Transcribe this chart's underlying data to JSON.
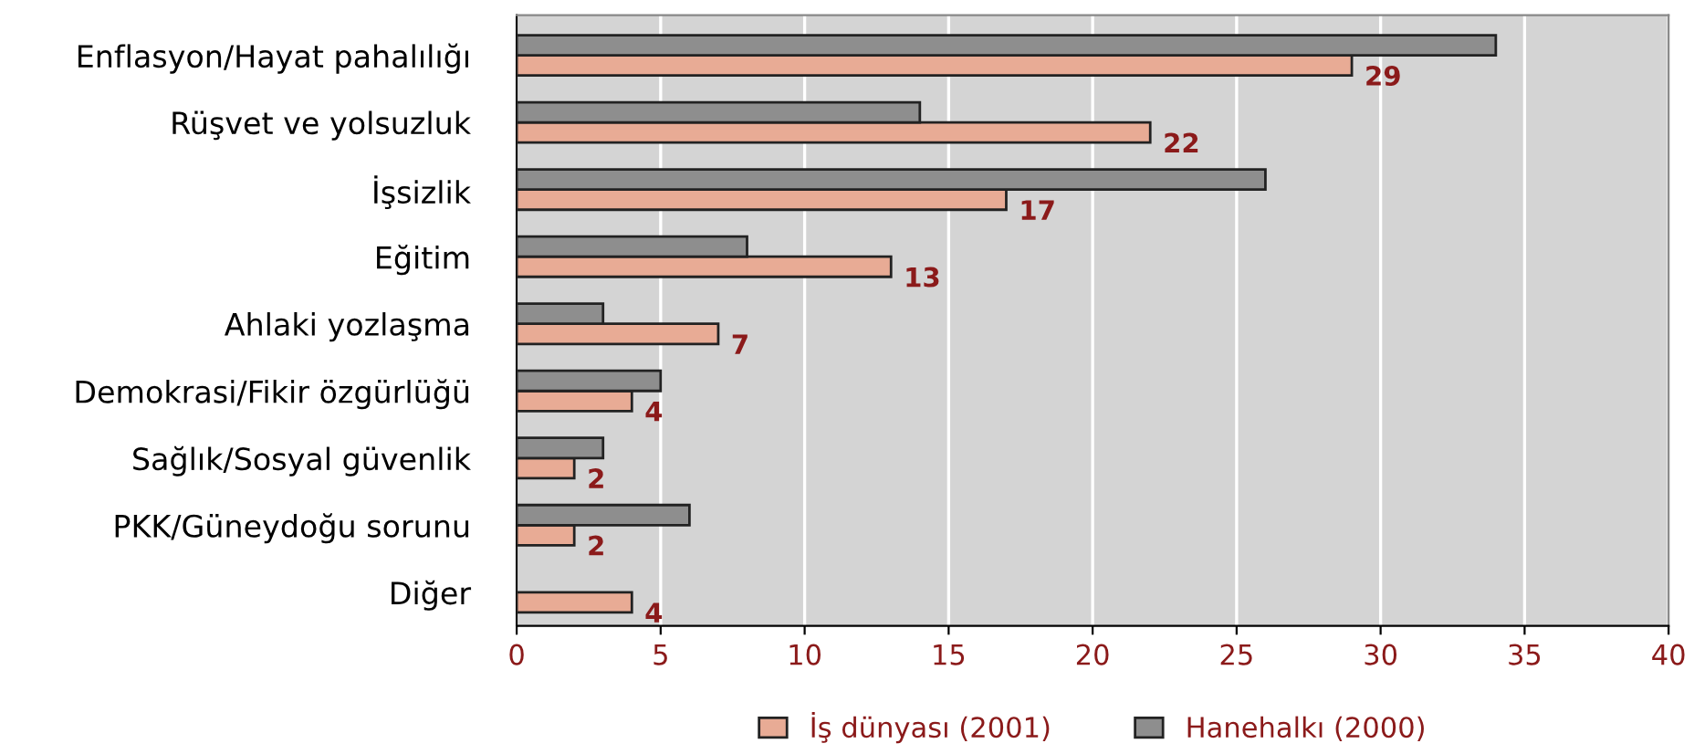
{
  "chart_data": {
    "type": "bar",
    "orientation": "horizontal",
    "categories": [
      "Enflasyon/Hayat pahalılığı",
      "Rüşvet ve yolsuzluk",
      "İşsizlik",
      "Eğitim",
      "Ahlaki yozlaşma",
      "Demokrasi/Fikir özgürlüğü",
      "Sağlık/Sosyal güvenlik",
      "PKK/Güneydoğu sorunu",
      "Diğer"
    ],
    "series": [
      {
        "name": "İş dünyası (2001)",
        "color": "#e8ab95",
        "values": [
          29,
          22,
          17,
          13,
          7,
          4,
          2,
          2,
          4
        ],
        "value_labels": [
          "29",
          "22",
          "17",
          "13",
          "7",
          "4",
          "2",
          "2",
          "4"
        ]
      },
      {
        "name": "Hanehalkı (2000)",
        "color": "#8e8e8e",
        "values": [
          34,
          14,
          26,
          8,
          3,
          5,
          3,
          6,
          null
        ]
      }
    ],
    "xlim": [
      0,
      40
    ],
    "xticks": [
      0,
      5,
      10,
      15,
      20,
      25,
      30,
      35,
      40
    ],
    "grid": "x",
    "legend": "bottom"
  }
}
